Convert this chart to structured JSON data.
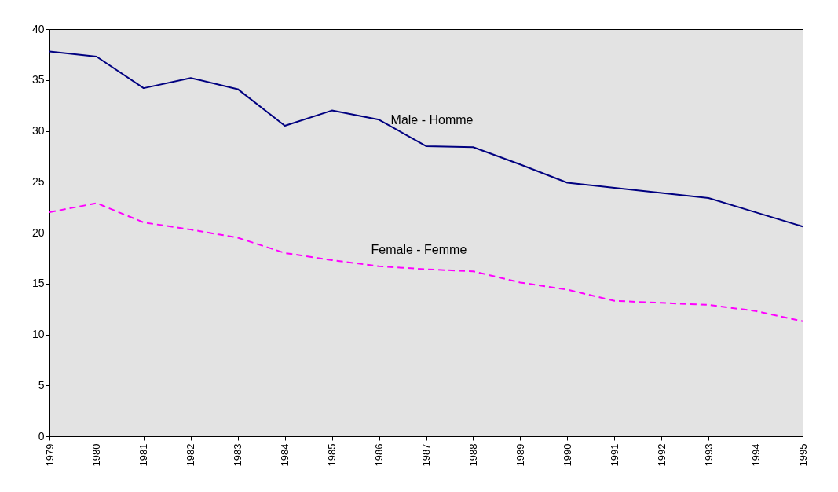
{
  "chart_data": {
    "type": "line",
    "categories": [
      "1979",
      "1980",
      "1981",
      "1982",
      "1983",
      "1984",
      "1985",
      "1986",
      "1987",
      "1988",
      "1989",
      "1990",
      "1991",
      "1992",
      "1993",
      "1994",
      "1995"
    ],
    "series": [
      {
        "name": "Male - Homme",
        "color": "#000080",
        "line_style": "solid",
        "values": [
          37.8,
          37.3,
          34.2,
          35.2,
          34.1,
          30.5,
          32.0,
          31.1,
          28.5,
          28.4,
          26.7,
          24.9,
          24.4,
          23.9,
          23.4,
          22.0,
          20.6
        ]
      },
      {
        "name": "Female - Femme",
        "color": "#ff00ff",
        "line_style": "dashed",
        "values": [
          22.0,
          22.9,
          21.0,
          20.3,
          19.5,
          18.0,
          17.3,
          16.7,
          16.4,
          16.2,
          15.1,
          14.4,
          13.3,
          13.1,
          12.9,
          12.3,
          11.3
        ]
      }
    ],
    "ylim": [
      0,
      40
    ],
    "yticks": [
      0,
      5,
      10,
      15,
      20,
      25,
      30,
      35,
      40
    ],
    "marker": "none"
  }
}
